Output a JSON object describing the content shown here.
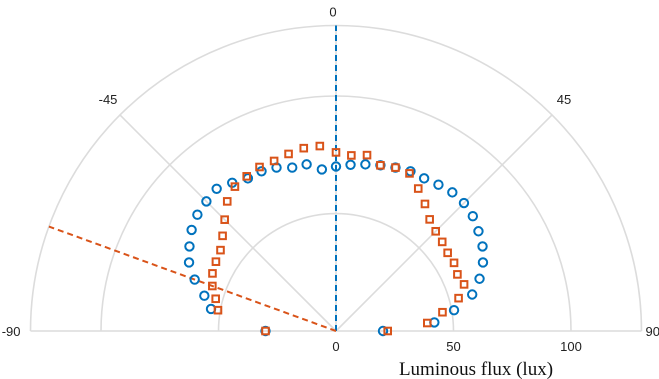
{
  "chart_data": {
    "type": "scatter",
    "coordinate_system": "polar-half",
    "angle_unit": "degrees",
    "theta_range": [
      -90,
      90
    ],
    "radius_range": [
      0,
      130
    ],
    "radial_ticks": [
      0,
      50,
      100
    ],
    "radial_tick_labels": [
      "0",
      "50",
      "100"
    ],
    "angle_ticks": [
      -90,
      -45,
      0,
      45,
      90
    ],
    "angle_tick_labels": [
      "-90",
      "-45",
      "0",
      "45",
      "90"
    ],
    "xlabel": "Luminous flux (lux)",
    "grid": true,
    "colors": {
      "blue": "#0072bd",
      "orange": "#d95319",
      "grid": "#dcdcdc"
    },
    "reference_lines": [
      {
        "angle": 0,
        "color": "#0072bd",
        "style": "dashed"
      },
      {
        "angle": -70,
        "color": "#d95319",
        "style": "dashed"
      }
    ],
    "series": [
      {
        "marker": "circle",
        "color": "#0072bd",
        "points": [
          {
            "angle": -90,
            "r": 30
          },
          {
            "angle": -80,
            "r": 54
          },
          {
            "angle": -75,
            "r": 58
          },
          {
            "angle": -70,
            "r": 64
          },
          {
            "angle": -65,
            "r": 69
          },
          {
            "angle": -60,
            "r": 72
          },
          {
            "angle": -55,
            "r": 75
          },
          {
            "angle": -50,
            "r": 77
          },
          {
            "angle": -45,
            "r": 78
          },
          {
            "angle": -40,
            "r": 79
          },
          {
            "angle": -35,
            "r": 77
          },
          {
            "angle": -30,
            "r": 75
          },
          {
            "angle": -25,
            "r": 75
          },
          {
            "angle": -20,
            "r": 74
          },
          {
            "angle": -15,
            "r": 72
          },
          {
            "angle": -10,
            "r": 72
          },
          {
            "angle": -5,
            "r": 69
          },
          {
            "angle": 0,
            "r": 70
          },
          {
            "angle": 5,
            "r": 71
          },
          {
            "angle": 10,
            "r": 72
          },
          {
            "angle": 15,
            "r": 73
          },
          {
            "angle": 20,
            "r": 74
          },
          {
            "angle": 25,
            "r": 75
          },
          {
            "angle": 30,
            "r": 75
          },
          {
            "angle": 35,
            "r": 76
          },
          {
            "angle": 40,
            "r": 77
          },
          {
            "angle": 45,
            "r": 77
          },
          {
            "angle": 50,
            "r": 76
          },
          {
            "angle": 55,
            "r": 74
          },
          {
            "angle": 60,
            "r": 72
          },
          {
            "angle": 65,
            "r": 69
          },
          {
            "angle": 70,
            "r": 65
          },
          {
            "angle": 75,
            "r": 60
          },
          {
            "angle": 80,
            "r": 51
          },
          {
            "angle": 85,
            "r": 42
          },
          {
            "angle": 90,
            "r": 20
          }
        ]
      },
      {
        "marker": "square",
        "color": "#d95319",
        "points": [
          {
            "angle": -90,
            "r": 30
          },
          {
            "angle": -80,
            "r": 51
          },
          {
            "angle": -75,
            "r": 53
          },
          {
            "angle": -70,
            "r": 56
          },
          {
            "angle": -65,
            "r": 58
          },
          {
            "angle": -60,
            "r": 59
          },
          {
            "angle": -55,
            "r": 60
          },
          {
            "angle": -50,
            "r": 63
          },
          {
            "angle": -45,
            "r": 67
          },
          {
            "angle": -40,
            "r": 72
          },
          {
            "angle": -35,
            "r": 75
          },
          {
            "angle": -30,
            "r": 76
          },
          {
            "angle": -25,
            "r": 77
          },
          {
            "angle": -20,
            "r": 77
          },
          {
            "angle": -15,
            "r": 78
          },
          {
            "angle": -10,
            "r": 79
          },
          {
            "angle": -5,
            "r": 79
          },
          {
            "angle": 0,
            "r": 76
          },
          {
            "angle": 5,
            "r": 75
          },
          {
            "angle": 10,
            "r": 76
          },
          {
            "angle": 15,
            "r": 73
          },
          {
            "angle": 20,
            "r": 74
          },
          {
            "angle": 25,
            "r": 74
          },
          {
            "angle": 30,
            "r": 70
          },
          {
            "angle": 35,
            "r": 66
          },
          {
            "angle": 40,
            "r": 62
          },
          {
            "angle": 45,
            "r": 60
          },
          {
            "angle": 50,
            "r": 59
          },
          {
            "angle": 55,
            "r": 58
          },
          {
            "angle": 60,
            "r": 58
          },
          {
            "angle": 65,
            "r": 57
          },
          {
            "angle": 70,
            "r": 58
          },
          {
            "angle": 75,
            "r": 54
          },
          {
            "angle": 80,
            "r": 46
          },
          {
            "angle": 85,
            "r": 39
          },
          {
            "angle": 90,
            "r": 22
          }
        ]
      }
    ]
  }
}
